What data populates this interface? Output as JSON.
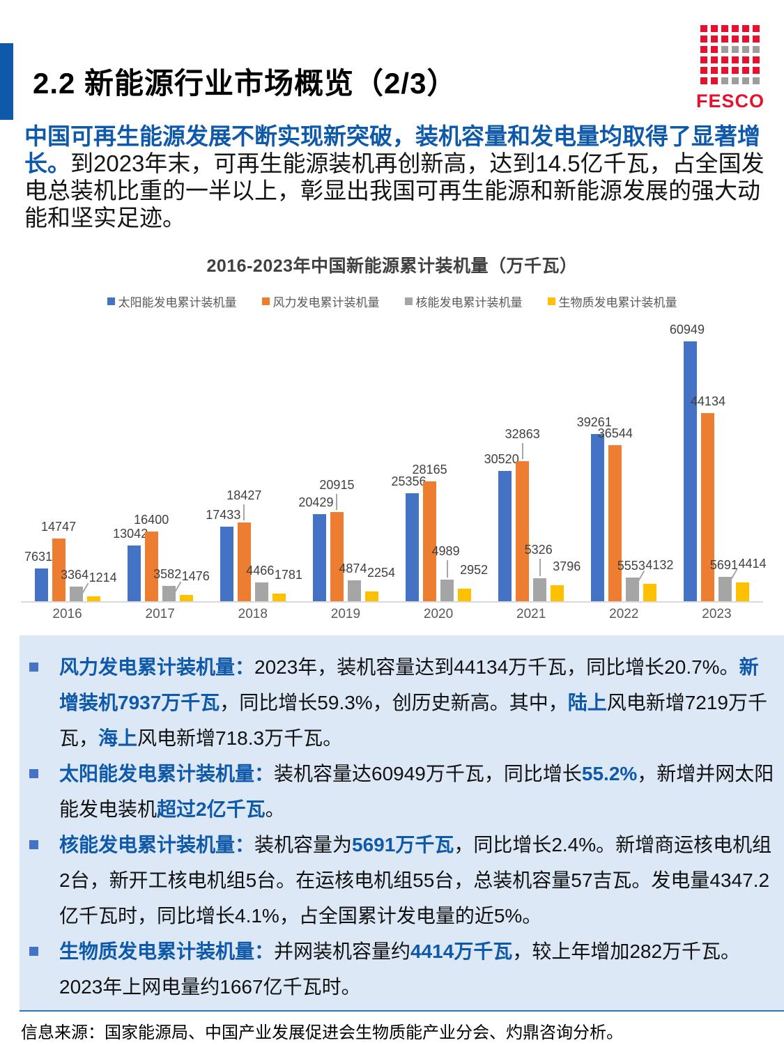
{
  "header": {
    "title": "2.2 新能源行业市场概览（2/3）",
    "logo": {
      "text": "FESCO",
      "red": "#E8112D",
      "gray": "#9D9D9C",
      "pattern": [
        "rrrrrr",
        "rrrrrr",
        "rrgggg",
        "rrrrrr",
        "rrrrrr",
        "rrgggg"
      ]
    }
  },
  "intro": {
    "segments": [
      {
        "t": "中国可再生能源发展不断实现新突破，装机容量和发电量均取得了显著增长。",
        "hl": true
      },
      {
        "t": "到2023年末，可再生能源装机再创新高，达到14.5亿千瓦，占全国发电总装机比重的一半以上，彰显出我国可再生能源和新能源发展的强大动能和坚实足迹。"
      }
    ]
  },
  "chart_data": {
    "type": "bar",
    "title": "2016-2023年中国新能源累计装机量（万千瓦）",
    "categories": [
      "2016",
      "2017",
      "2018",
      "2019",
      "2020",
      "2021",
      "2022",
      "2023"
    ],
    "series": [
      {
        "name": "太阳能发电累计装机量",
        "color": "#4472C4",
        "values": [
          7631,
          13042,
          17433,
          20429,
          25356,
          30520,
          39261,
          60949
        ]
      },
      {
        "name": "风力发电累计装机量",
        "color": "#ED7D31",
        "values": [
          14747,
          16400,
          18427,
          20915,
          28165,
          32863,
          36544,
          44134
        ]
      },
      {
        "name": "核能发电累计装机量",
        "color": "#A5A5A5",
        "values": [
          3364,
          3582,
          4466,
          4874,
          4989,
          5326,
          5553,
          5691
        ]
      },
      {
        "name": "生物质发电累计装机量",
        "color": "#FFC000",
        "values": [
          1214,
          1476,
          1781,
          2254,
          2952,
          3796,
          4132,
          4414
        ]
      }
    ],
    "ylim": [
      0,
      62000
    ],
    "grid": false,
    "legend_position": "top",
    "value_labels": true,
    "label_layout": {
      "wind_raised": [
        false,
        false,
        true,
        true,
        false,
        true,
        false,
        false
      ],
      "nuclear_raised": [
        false,
        false,
        false,
        false,
        true,
        true,
        false,
        false
      ],
      "biomass_leader": [
        true,
        true,
        false,
        false,
        false,
        false,
        true,
        true
      ]
    }
  },
  "panel": {
    "background": "#DCE8F5",
    "bullet_color": "#4472C4",
    "highlight_color": "#0E59A9",
    "bullets": [
      {
        "segments": [
          {
            "t": "风力发电累计装机量：",
            "hl": true
          },
          {
            "t": "2023年，装机容量达到44134万千瓦，同比增长20.7%。"
          },
          {
            "t": "新增装机7937万千瓦",
            "hl": true
          },
          {
            "t": "，同比增长59.3%，创历史新高。其中，"
          },
          {
            "t": "陆上",
            "hl": true
          },
          {
            "t": "风电新增7219万千瓦，"
          },
          {
            "t": "海上",
            "hl": true
          },
          {
            "t": "风电新增718.3万千瓦。"
          }
        ]
      },
      {
        "segments": [
          {
            "t": "太阳能发电累计装机量：",
            "hl": true
          },
          {
            "t": "装机容量达60949万千瓦，同比增长"
          },
          {
            "t": "55.2%",
            "hl": true
          },
          {
            "t": "，新增并网太阳能发电装机"
          },
          {
            "t": "超过2亿千瓦",
            "hl": true
          },
          {
            "t": "。"
          }
        ]
      },
      {
        "segments": [
          {
            "t": "核能发电累计装机量：",
            "hl": true
          },
          {
            "t": "装机容量为"
          },
          {
            "t": "5691万千瓦",
            "hl": true
          },
          {
            "t": "，同比增长2.4%。新增商运核电机组2台，新开工核电机组5台。在运核电机组55台，总装机容量57吉瓦。发电量4347.2亿千瓦时，同比增长4.1%，占全国累计发电量的近5%。"
          }
        ]
      },
      {
        "segments": [
          {
            "t": "生物质发电累计装机量：",
            "hl": true
          },
          {
            "t": "并网装机容量约"
          },
          {
            "t": "4414万千瓦",
            "hl": true
          },
          {
            "t": "，较上年增加282万千瓦。2023年上网电量约1667亿千瓦时。"
          }
        ]
      }
    ]
  },
  "footer": {
    "source": "信息来源：国家能源局、中国产业发展促进会生物质能产业分会、灼鼎咨询分析。"
  }
}
